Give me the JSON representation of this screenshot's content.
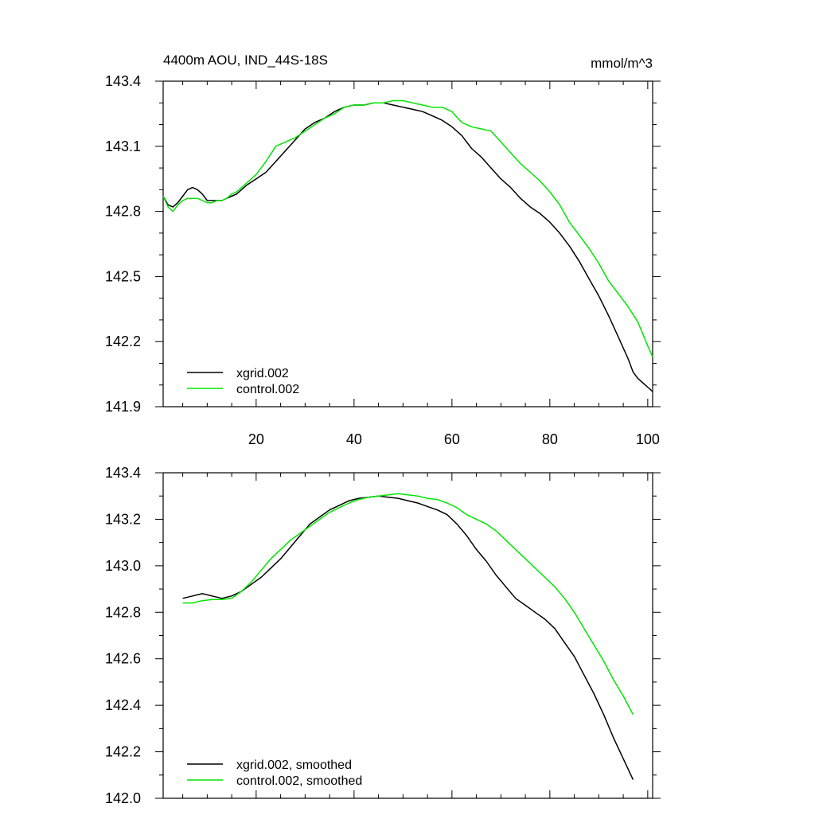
{
  "chart_data": [
    {
      "type": "line",
      "title": "4400m AOU, IND_44S-18S",
      "units": "mmol/m^3",
      "xlabel": "",
      "ylabel": "",
      "xlim": [
        1,
        101
      ],
      "ylim": [
        141.9,
        143.4
      ],
      "xticks": [
        20,
        40,
        60,
        80,
        100
      ],
      "xtick_labels": [
        "20",
        "40",
        "60",
        "80",
        "100"
      ],
      "yticks": [
        141.9,
        142.2,
        142.5,
        142.8,
        143.1,
        143.4
      ],
      "ytick_labels": [
        "141.9",
        "142.2",
        "142.5",
        "142.8",
        "143.1",
        "143.4"
      ],
      "legend_position": "bottom-left",
      "series": [
        {
          "name": "xgrid.002",
          "color": "#000000",
          "x": [
            1,
            2,
            3,
            4,
            5,
            6,
            7,
            8,
            9,
            10,
            11,
            12,
            13,
            14,
            15,
            16,
            18,
            20,
            22,
            24,
            26,
            28,
            30,
            32,
            34,
            36,
            38,
            40,
            42,
            44,
            46,
            48,
            50,
            52,
            54,
            56,
            58,
            60,
            62,
            64,
            66,
            68,
            70,
            72,
            74,
            76,
            78,
            80,
            82,
            84,
            86,
            88,
            90,
            92,
            94,
            96,
            97,
            98,
            99,
            100,
            101
          ],
          "values": [
            142.87,
            142.83,
            142.82,
            142.84,
            142.87,
            142.9,
            142.91,
            142.9,
            142.88,
            142.85,
            142.85,
            142.85,
            142.85,
            142.86,
            142.87,
            142.88,
            142.92,
            142.95,
            142.98,
            143.03,
            143.08,
            143.13,
            143.18,
            143.21,
            143.23,
            143.26,
            143.28,
            143.29,
            143.29,
            143.3,
            143.3,
            143.29,
            143.28,
            143.27,
            143.26,
            143.24,
            143.22,
            143.19,
            143.15,
            143.09,
            143.05,
            143.0,
            142.95,
            142.91,
            142.86,
            142.82,
            142.79,
            142.75,
            142.7,
            142.64,
            142.57,
            142.49,
            142.41,
            142.32,
            142.22,
            142.12,
            142.06,
            142.03,
            142.01,
            141.99,
            141.97
          ]
        },
        {
          "name": "control.002",
          "color": "#00e600",
          "x": [
            1,
            2,
            3,
            4,
            5,
            6,
            7,
            8,
            9,
            10,
            11,
            12,
            13,
            14,
            15,
            16,
            18,
            20,
            22,
            24,
            26,
            28,
            30,
            32,
            34,
            36,
            38,
            40,
            42,
            44,
            46,
            48,
            50,
            52,
            54,
            56,
            58,
            60,
            62,
            64,
            66,
            68,
            70,
            72,
            74,
            76,
            78,
            80,
            82,
            84,
            86,
            88,
            90,
            92,
            94,
            96,
            98,
            100,
            101
          ],
          "values": [
            142.87,
            142.82,
            142.8,
            142.83,
            142.85,
            142.86,
            142.86,
            142.86,
            142.85,
            142.84,
            142.84,
            142.85,
            142.85,
            142.86,
            142.88,
            142.89,
            142.93,
            142.97,
            143.03,
            143.1,
            143.12,
            143.14,
            143.17,
            143.2,
            143.23,
            143.25,
            143.28,
            143.29,
            143.29,
            143.3,
            143.3,
            143.31,
            143.31,
            143.3,
            143.29,
            143.28,
            143.28,
            143.26,
            143.21,
            143.19,
            143.18,
            143.17,
            143.12,
            143.07,
            143.02,
            142.98,
            142.94,
            142.89,
            142.83,
            142.75,
            142.69,
            142.63,
            142.56,
            142.48,
            142.42,
            142.36,
            142.29,
            142.18,
            142.13
          ]
        }
      ]
    },
    {
      "type": "line",
      "title": "",
      "xlabel": "",
      "ylabel": "",
      "xlim": [
        1,
        101
      ],
      "ylim": [
        142.0,
        143.4
      ],
      "xticks": [
        20,
        40,
        60,
        80,
        100
      ],
      "xtick_labels": [],
      "yticks": [
        142.0,
        142.2,
        142.4,
        142.6,
        142.8,
        143.0,
        143.2,
        143.4
      ],
      "ytick_labels": [
        "142.0",
        "142.2",
        "142.4",
        "142.6",
        "142.8",
        "143.0",
        "143.2",
        "143.4"
      ],
      "legend_position": "bottom-left",
      "series": [
        {
          "name": "xgrid.002, smoothed",
          "color": "#000000",
          "x": [
            5,
            7,
            9,
            11,
            13,
            15,
            17,
            19,
            21,
            23,
            25,
            27,
            29,
            31,
            33,
            35,
            37,
            39,
            41,
            43,
            45,
            47,
            49,
            51,
            53,
            55,
            57,
            59,
            61,
            63,
            65,
            67,
            69,
            71,
            73,
            75,
            77,
            79,
            81,
            83,
            85,
            87,
            89,
            91,
            93,
            95,
            97
          ],
          "values": [
            142.86,
            142.87,
            142.88,
            142.87,
            142.86,
            142.87,
            142.89,
            142.92,
            142.95,
            142.99,
            143.03,
            143.08,
            143.13,
            143.18,
            143.21,
            143.24,
            143.26,
            143.28,
            143.29,
            143.295,
            143.3,
            143.295,
            143.29,
            143.28,
            143.27,
            143.255,
            143.24,
            143.22,
            143.18,
            143.13,
            143.07,
            143.02,
            142.96,
            142.91,
            142.86,
            142.83,
            142.8,
            142.77,
            142.73,
            142.67,
            142.61,
            142.53,
            142.45,
            142.36,
            142.26,
            142.17,
            142.08
          ]
        },
        {
          "name": "control.002, smoothed",
          "color": "#00e600",
          "x": [
            5,
            7,
            9,
            11,
            13,
            15,
            17,
            19,
            21,
            23,
            25,
            27,
            29,
            31,
            33,
            35,
            37,
            39,
            41,
            43,
            45,
            47,
            49,
            51,
            53,
            55,
            57,
            59,
            61,
            63,
            65,
            67,
            69,
            71,
            73,
            75,
            77,
            79,
            81,
            83,
            85,
            87,
            89,
            91,
            93,
            95,
            97
          ],
          "values": [
            142.84,
            142.84,
            142.85,
            142.855,
            142.855,
            142.86,
            142.89,
            142.93,
            142.98,
            143.03,
            143.07,
            143.11,
            143.14,
            143.17,
            143.2,
            143.23,
            143.25,
            143.27,
            143.285,
            143.295,
            143.3,
            143.305,
            143.31,
            143.305,
            143.3,
            143.29,
            143.285,
            143.27,
            143.25,
            143.22,
            143.2,
            143.18,
            143.15,
            143.11,
            143.07,
            143.03,
            142.99,
            142.95,
            142.91,
            142.86,
            142.8,
            142.73,
            142.66,
            142.59,
            142.51,
            142.44,
            142.36
          ]
        }
      ]
    }
  ]
}
